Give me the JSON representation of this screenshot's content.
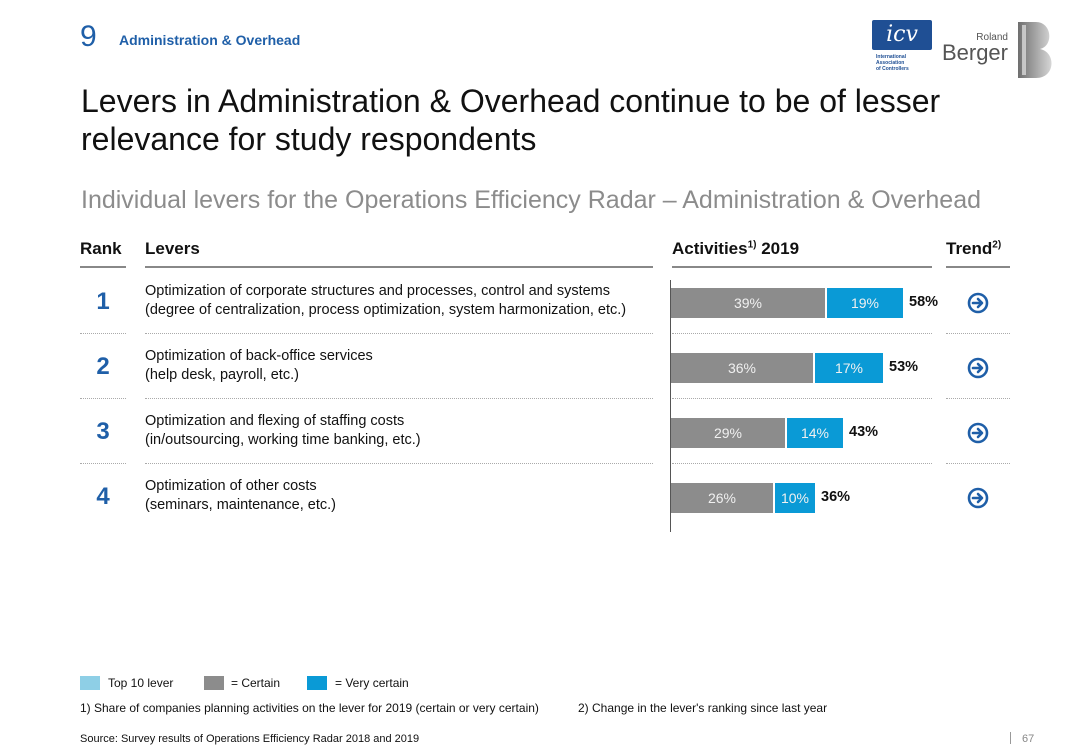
{
  "header": {
    "section_number": "9",
    "section_name": "Administration & Overhead",
    "title_line1": "Levers in Administration & Overhead continue to be of lesser",
    "title_line2": "relevance for study respondents",
    "subtitle": "Individual levers for the Operations Efficiency Radar – Administration & Overhead"
  },
  "logos": {
    "icv_text": "icv",
    "icv_line1": "International",
    "icv_line2": "Association",
    "icv_line3": "of Controllers",
    "rb_small": "Roland",
    "rb_big": "Berger"
  },
  "columns": {
    "rank": "Rank",
    "levers": "Levers",
    "activities": "Activities",
    "activities_sup": "1)",
    "activities_year": " 2019",
    "trend": "Trend",
    "trend_sup": "2)"
  },
  "chart_data": {
    "type": "bar",
    "orientation": "horizontal",
    "stacked": true,
    "categories": [
      "Optimization of corporate structures and processes, control and systems",
      "Optimization of back-office services",
      "Optimization and flexing of staffing costs",
      "Optimization of other costs"
    ],
    "series": [
      {
        "name": "= Certain",
        "values": [
          39,
          36,
          29,
          26
        ],
        "color": "#8c8c8c"
      },
      {
        "name": "= Very certain",
        "values": [
          19,
          17,
          14,
          10
        ],
        "color": "#0a9ad6"
      }
    ],
    "totals": [
      58,
      53,
      43,
      36
    ],
    "unit": "%",
    "xlim": [
      0,
      100
    ]
  },
  "rows": [
    {
      "rank": "1",
      "line1": "Optimization of corporate structures and processes, control and systems",
      "line2": "(degree of centralization, process optimization, system harmonization, etc.)",
      "certain_label": "39%",
      "very_label": "19%",
      "total_label": "58%",
      "trend_icon": "arrow-right-circle-icon"
    },
    {
      "rank": "2",
      "line1": "Optimization of back-office services",
      "line2": "(help desk, payroll, etc.)",
      "certain_label": "36%",
      "very_label": "17%",
      "total_label": "53%",
      "trend_icon": "arrow-right-circle-icon"
    },
    {
      "rank": "3",
      "line1": "Optimization and flexing of staffing costs",
      "line2": "(in/outsourcing, working time banking, etc.)",
      "certain_label": "29%",
      "very_label": "14%",
      "total_label": "43%",
      "trend_icon": "arrow-right-circle-icon"
    },
    {
      "rank": "4",
      "line1": "Optimization of other costs",
      "line2": "(seminars, maintenance, etc.)",
      "certain_label": "26%",
      "very_label": "10%",
      "total_label": "36%",
      "trend_icon": "arrow-right-circle-icon"
    }
  ],
  "legend": {
    "top10": {
      "label": "Top 10 lever",
      "color": "#8ecfe6"
    },
    "certain": {
      "label": "= Certain",
      "color": "#8c8c8c"
    },
    "very": {
      "label": "= Very certain",
      "color": "#0a9ad6"
    }
  },
  "footnotes": {
    "note1": "1) Share of companies planning activities on the lever for 2019 (certain or very certain)",
    "note2": "2) Change in the lever's ranking since last year",
    "source": "Source: Survey results of Operations Efficiency Radar 2018 and 2019",
    "page": "67"
  },
  "colors": {
    "accent": "#1f5fa8",
    "certain": "#8c8c8c",
    "very_certain": "#0a9ad6"
  }
}
